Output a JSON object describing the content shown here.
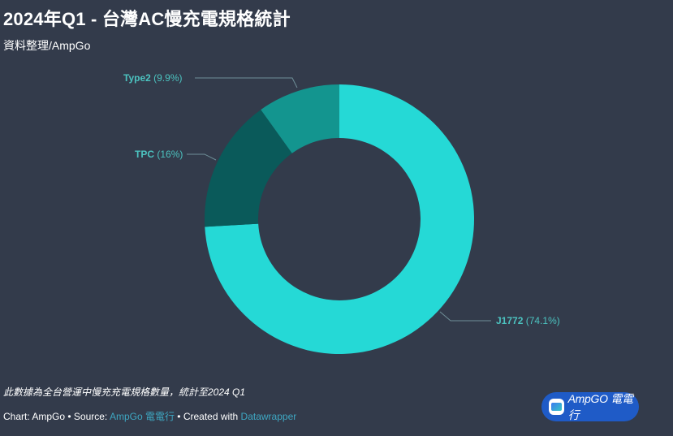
{
  "header": {
    "title": "2024年Q1 - 台灣AC慢充電規格統計",
    "subtitle": "資料整理/AmpGo"
  },
  "chart_data": {
    "type": "pie",
    "variant": "donut",
    "title": "2024年Q1 - 台灣AC慢充電規格統計",
    "subtitle": "資料整理/AmpGo",
    "categories": [
      "J1772",
      "TPC",
      "Type2"
    ],
    "values": [
      74.1,
      16,
      9.9
    ],
    "unit": "%",
    "colors": [
      "#25d9d6",
      "#0a5a5a",
      "#13958f"
    ],
    "labels": [
      "J1772 (74.1%)",
      "TPC (16%)",
      "Type2 (9.9%)"
    ],
    "start_angle": "top, clockwise",
    "legend": "none (direct labels with leader lines)"
  },
  "labels": {
    "j1772": {
      "name": "J1772",
      "pct": "(74.1%)"
    },
    "tpc": {
      "name": "TPC",
      "pct": "(16%)"
    },
    "type2": {
      "name": "Type2",
      "pct": "(9.9%)"
    }
  },
  "footer": {
    "note": "此數據為全台營運中慢充充電規格數量，統計至2024 Q1",
    "chart_prefix": "Chart: AmpGo • Source: ",
    "source_link": "AmpGo 電電行",
    "created_prefix": " • Created with ",
    "tool_link": "Datawrapper"
  },
  "badge": {
    "text": "AmpGO 電電行"
  },
  "colors": {
    "background": "#333b4b",
    "label": "#4cc3c0",
    "link": "#3ea7c2",
    "badge": "#1f5bc7"
  }
}
